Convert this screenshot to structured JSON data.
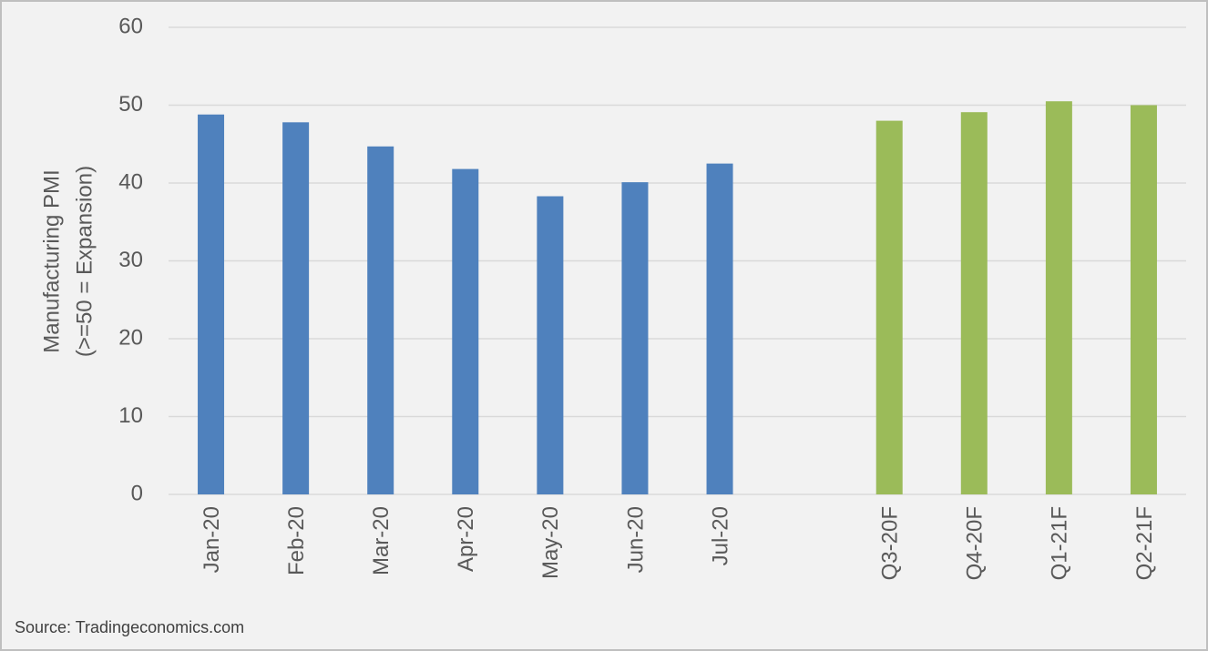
{
  "chart_data": {
    "type": "bar",
    "y_label": [
      "Manufacturing  PMI",
      "(>=50 = Expansion)"
    ],
    "source": "Source: Tradingeconomics.com",
    "categories": [
      "Jan-20",
      "Feb-20",
      "Mar-20",
      "Apr-20",
      "May-20",
      "Jun-20",
      "Jul-20",
      null,
      "Q3-20F",
      "Q4-20F",
      "Q1-21F",
      "Q2-21F"
    ],
    "values": [
      48.8,
      47.8,
      44.7,
      41.8,
      38.3,
      40.1,
      42.5,
      null,
      48.0,
      49.1,
      50.5,
      50.0
    ],
    "colors": [
      "#4f81bd",
      "#4f81bd",
      "#4f81bd",
      "#4f81bd",
      "#4f81bd",
      "#4f81bd",
      "#4f81bd",
      null,
      "#9bbb59",
      "#9bbb59",
      "#9bbb59",
      "#9bbb59"
    ],
    "ylim": [
      0,
      60
    ],
    "yticks": [
      0,
      10,
      20,
      30,
      40,
      50,
      60
    ],
    "grid": true
  }
}
